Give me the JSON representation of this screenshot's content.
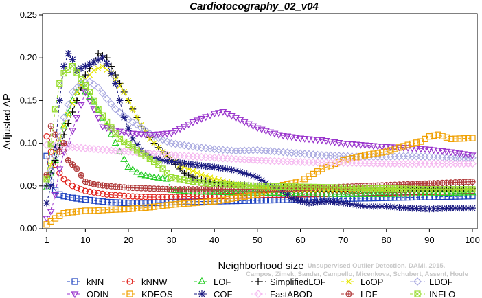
{
  "chart_data": {
    "type": "line",
    "title": "Cardiotocography_02_v04",
    "xlabel": "Neighborhood size",
    "ylabel": "Adjusted AP",
    "xlim": [
      1,
      100
    ],
    "ylim": [
      0,
      0.25
    ],
    "x_ticks": [
      1,
      10,
      20,
      30,
      40,
      50,
      60,
      70,
      80,
      90,
      100
    ],
    "y_ticks": [
      0.0,
      0.05,
      0.1,
      0.15,
      0.2,
      0.25
    ],
    "y_tick_labels": [
      "0.00",
      "0.05",
      "0.10",
      "0.15",
      "0.20",
      "0.25"
    ],
    "grid": false,
    "legend_position": "bottom",
    "watermark": "Campos, Zimek, Sander, Campello, Micenkova, Schubert, Assent, Houle Unsupervised Outlier Detection. DAMI, 2015.",
    "series": [
      {
        "name": "kNN",
        "color": "#1a3fbf",
        "marker": "square",
        "points": [
          [
            1,
            0.085
          ],
          [
            2,
            0.055
          ],
          [
            3,
            0.045
          ],
          [
            4,
            0.04
          ],
          [
            5,
            0.038
          ],
          [
            7,
            0.036
          ],
          [
            10,
            0.034
          ],
          [
            15,
            0.031
          ],
          [
            20,
            0.03
          ],
          [
            25,
            0.03
          ],
          [
            30,
            0.031
          ],
          [
            40,
            0.032
          ],
          [
            50,
            0.033
          ],
          [
            60,
            0.034
          ],
          [
            70,
            0.035
          ],
          [
            80,
            0.036
          ],
          [
            90,
            0.037
          ],
          [
            100,
            0.038
          ]
        ]
      },
      {
        "name": "kNNW",
        "color": "#e0201a",
        "marker": "circle",
        "points": [
          [
            1,
            0.108
          ],
          [
            2,
            0.09
          ],
          [
            3,
            0.075
          ],
          [
            4,
            0.065
          ],
          [
            5,
            0.058
          ],
          [
            7,
            0.05
          ],
          [
            10,
            0.044
          ],
          [
            15,
            0.04
          ],
          [
            20,
            0.038
          ],
          [
            25,
            0.037
          ],
          [
            30,
            0.037
          ],
          [
            40,
            0.038
          ],
          [
            50,
            0.039
          ],
          [
            60,
            0.04
          ],
          [
            70,
            0.041
          ],
          [
            80,
            0.042
          ],
          [
            90,
            0.043
          ],
          [
            100,
            0.044
          ]
        ]
      },
      {
        "name": "LOF",
        "color": "#22cc22",
        "marker": "triangle",
        "points": [
          [
            1,
            0.048
          ],
          [
            3,
            0.08
          ],
          [
            5,
            0.12
          ],
          [
            7,
            0.15
          ],
          [
            9,
            0.168
          ],
          [
            10,
            0.16
          ],
          [
            12,
            0.148
          ],
          [
            15,
            0.12
          ],
          [
            18,
            0.09
          ],
          [
            20,
            0.072
          ],
          [
            23,
            0.063
          ],
          [
            26,
            0.06
          ],
          [
            29,
            0.058
          ],
          [
            30,
            0.045
          ],
          [
            35,
            0.043
          ],
          [
            45,
            0.042
          ],
          [
            60,
            0.041
          ],
          [
            70,
            0.04
          ],
          [
            80,
            0.04
          ],
          [
            90,
            0.041
          ],
          [
            100,
            0.042
          ]
        ]
      },
      {
        "name": "SimplifiedLOF",
        "color": "#000000",
        "marker": "plus",
        "points": [
          [
            1,
            0.05
          ],
          [
            3,
            0.08
          ],
          [
            5,
            0.11
          ],
          [
            8,
            0.15
          ],
          [
            10,
            0.18
          ],
          [
            12,
            0.195
          ],
          [
            13,
            0.205
          ],
          [
            15,
            0.2
          ],
          [
            17,
            0.18
          ],
          [
            20,
            0.15
          ],
          [
            23,
            0.12
          ],
          [
            26,
            0.1
          ],
          [
            30,
            0.08
          ],
          [
            33,
            0.065
          ],
          [
            36,
            0.058
          ],
          [
            40,
            0.054
          ],
          [
            45,
            0.052
          ],
          [
            50,
            0.05
          ],
          [
            55,
            0.049
          ],
          [
            60,
            0.048
          ],
          [
            70,
            0.047
          ],
          [
            80,
            0.047
          ],
          [
            90,
            0.047
          ],
          [
            100,
            0.047
          ]
        ]
      },
      {
        "name": "LoOP",
        "color": "#e6e600",
        "marker": "x",
        "points": [
          [
            1,
            0.06
          ],
          [
            3,
            0.09
          ],
          [
            5,
            0.12
          ],
          [
            8,
            0.16
          ],
          [
            10,
            0.175
          ],
          [
            12,
            0.185
          ],
          [
            14,
            0.19
          ],
          [
            16,
            0.182
          ],
          [
            19,
            0.16
          ],
          [
            22,
            0.13
          ],
          [
            25,
            0.105
          ],
          [
            28,
            0.09
          ],
          [
            32,
            0.075
          ],
          [
            36,
            0.065
          ],
          [
            40,
            0.058
          ],
          [
            45,
            0.052
          ],
          [
            50,
            0.049
          ],
          [
            60,
            0.046
          ],
          [
            70,
            0.046
          ],
          [
            80,
            0.046
          ],
          [
            90,
            0.046
          ],
          [
            100,
            0.046
          ]
        ]
      },
      {
        "name": "LDOF",
        "color": "#a9a9e0",
        "marker": "diamond",
        "points": [
          [
            1,
            0.05
          ],
          [
            3,
            0.085
          ],
          [
            5,
            0.13
          ],
          [
            7,
            0.16
          ],
          [
            9,
            0.17
          ],
          [
            11,
            0.172
          ],
          [
            13,
            0.165
          ],
          [
            15,
            0.152
          ],
          [
            17,
            0.14
          ],
          [
            20,
            0.128
          ],
          [
            23,
            0.118
          ],
          [
            26,
            0.108
          ],
          [
            30,
            0.1
          ],
          [
            35,
            0.096
          ],
          [
            40,
            0.093
          ],
          [
            45,
            0.091
          ],
          [
            50,
            0.092
          ],
          [
            55,
            0.09
          ],
          [
            60,
            0.088
          ],
          [
            65,
            0.086
          ],
          [
            70,
            0.085
          ],
          [
            75,
            0.084
          ],
          [
            80,
            0.084
          ],
          [
            85,
            0.085
          ],
          [
            90,
            0.084
          ],
          [
            95,
            0.083
          ],
          [
            100,
            0.083
          ]
        ]
      },
      {
        "name": "ODIN",
        "color": "#9933cc",
        "marker": "triangle-down",
        "points": [
          [
            1,
            0.012
          ],
          [
            2,
            0.02
          ],
          [
            3,
            0.04
          ],
          [
            4,
            0.07
          ],
          [
            5,
            0.09
          ],
          [
            6,
            0.1
          ],
          [
            8,
            0.13
          ],
          [
            10,
            0.16
          ],
          [
            12,
            0.14
          ],
          [
            14,
            0.12
          ],
          [
            17,
            0.115
          ],
          [
            20,
            0.112
          ],
          [
            25,
            0.11
          ],
          [
            30,
            0.112
          ],
          [
            35,
            0.125
          ],
          [
            40,
            0.135
          ],
          [
            42,
            0.137
          ],
          [
            45,
            0.13
          ],
          [
            50,
            0.118
          ],
          [
            55,
            0.11
          ],
          [
            60,
            0.106
          ],
          [
            65,
            0.104
          ],
          [
            70,
            0.1
          ],
          [
            75,
            0.098
          ],
          [
            80,
            0.096
          ],
          [
            85,
            0.095
          ],
          [
            90,
            0.093
          ],
          [
            95,
            0.09
          ],
          [
            100,
            0.086
          ]
        ]
      },
      {
        "name": "KDEOS",
        "color": "#f0a000",
        "marker": "square",
        "points": [
          [
            1,
            0.005
          ],
          [
            3,
            0.012
          ],
          [
            5,
            0.018
          ],
          [
            8,
            0.02
          ],
          [
            10,
            0.021
          ],
          [
            12,
            0.021
          ],
          [
            15,
            0.022
          ],
          [
            20,
            0.023
          ],
          [
            25,
            0.025
          ],
          [
            30,
            0.028
          ],
          [
            35,
            0.03
          ],
          [
            40,
            0.032
          ],
          [
            45,
            0.036
          ],
          [
            50,
            0.04
          ],
          [
            55,
            0.05
          ],
          [
            60,
            0.055
          ],
          [
            65,
            0.07
          ],
          [
            70,
            0.08
          ],
          [
            75,
            0.086
          ],
          [
            80,
            0.09
          ],
          [
            83,
            0.095
          ],
          [
            85,
            0.098
          ],
          [
            88,
            0.102
          ],
          [
            90,
            0.108
          ],
          [
            92,
            0.11
          ],
          [
            95,
            0.105
          ],
          [
            100,
            0.106
          ]
        ]
      },
      {
        "name": "COF",
        "color": "#1a1a80",
        "marker": "asterisk",
        "points": [
          [
            1,
            0.03
          ],
          [
            2,
            0.05
          ],
          [
            3,
            0.095
          ],
          [
            4,
            0.15
          ],
          [
            5,
            0.19
          ],
          [
            6,
            0.205
          ],
          [
            7,
            0.198
          ],
          [
            8,
            0.185
          ],
          [
            10,
            0.19
          ],
          [
            12,
            0.195
          ],
          [
            14,
            0.2
          ],
          [
            15,
            0.193
          ],
          [
            17,
            0.17
          ],
          [
            19,
            0.13
          ],
          [
            21,
            0.105
          ],
          [
            23,
            0.092
          ],
          [
            25,
            0.085
          ],
          [
            28,
            0.08
          ],
          [
            31,
            0.078
          ],
          [
            35,
            0.075
          ],
          [
            40,
            0.072
          ],
          [
            45,
            0.068
          ],
          [
            50,
            0.06
          ],
          [
            53,
            0.05
          ],
          [
            56,
            0.045
          ],
          [
            58,
            0.035
          ],
          [
            62,
            0.03
          ],
          [
            66,
            0.032
          ],
          [
            70,
            0.03
          ],
          [
            75,
            0.026
          ],
          [
            80,
            0.026
          ],
          [
            85,
            0.024
          ],
          [
            90,
            0.023
          ],
          [
            95,
            0.024
          ],
          [
            100,
            0.024
          ]
        ]
      },
      {
        "name": "FastABOD",
        "color": "#f5b8f0",
        "marker": "diamond",
        "points": [
          [
            1,
            0.098
          ],
          [
            3,
            0.097
          ],
          [
            5,
            0.096
          ],
          [
            8,
            0.095
          ],
          [
            10,
            0.094
          ],
          [
            15,
            0.092
          ],
          [
            20,
            0.09
          ],
          [
            25,
            0.088
          ],
          [
            30,
            0.086
          ],
          [
            40,
            0.083
          ],
          [
            50,
            0.08
          ],
          [
            60,
            0.078
          ],
          [
            70,
            0.077
          ],
          [
            80,
            0.076
          ],
          [
            90,
            0.076
          ],
          [
            100,
            0.076
          ]
        ]
      },
      {
        "name": "LDF",
        "color": "#b03a3a",
        "marker": "circle-plus",
        "points": [
          [
            1,
            0.063
          ],
          [
            2,
            0.12
          ],
          [
            3,
            0.11
          ],
          [
            4,
            0.09
          ],
          [
            5,
            0.1
          ],
          [
            6,
            0.08
          ],
          [
            8,
            0.07
          ],
          [
            10,
            0.055
          ],
          [
            12,
            0.052
          ],
          [
            15,
            0.05
          ],
          [
            20,
            0.048
          ],
          [
            30,
            0.046
          ],
          [
            40,
            0.046
          ],
          [
            50,
            0.046
          ],
          [
            60,
            0.047
          ],
          [
            70,
            0.049
          ],
          [
            80,
            0.051
          ],
          [
            90,
            0.053
          ],
          [
            100,
            0.055
          ]
        ]
      },
      {
        "name": "INFLO",
        "color": "#99dd33",
        "marker": "boxcross",
        "points": [
          [
            1,
            0.058
          ],
          [
            3,
            0.14
          ],
          [
            4,
            0.17
          ],
          [
            5,
            0.182
          ],
          [
            7,
            0.19
          ],
          [
            9,
            0.175
          ],
          [
            11,
            0.16
          ],
          [
            13,
            0.14
          ],
          [
            15,
            0.125
          ],
          [
            18,
            0.105
          ],
          [
            21,
            0.095
          ],
          [
            24,
            0.085
          ],
          [
            27,
            0.075
          ],
          [
            30,
            0.06
          ],
          [
            35,
            0.055
          ],
          [
            40,
            0.052
          ],
          [
            50,
            0.05
          ],
          [
            60,
            0.049
          ],
          [
            70,
            0.048
          ],
          [
            80,
            0.047
          ],
          [
            90,
            0.046
          ],
          [
            100,
            0.046
          ]
        ]
      }
    ]
  }
}
